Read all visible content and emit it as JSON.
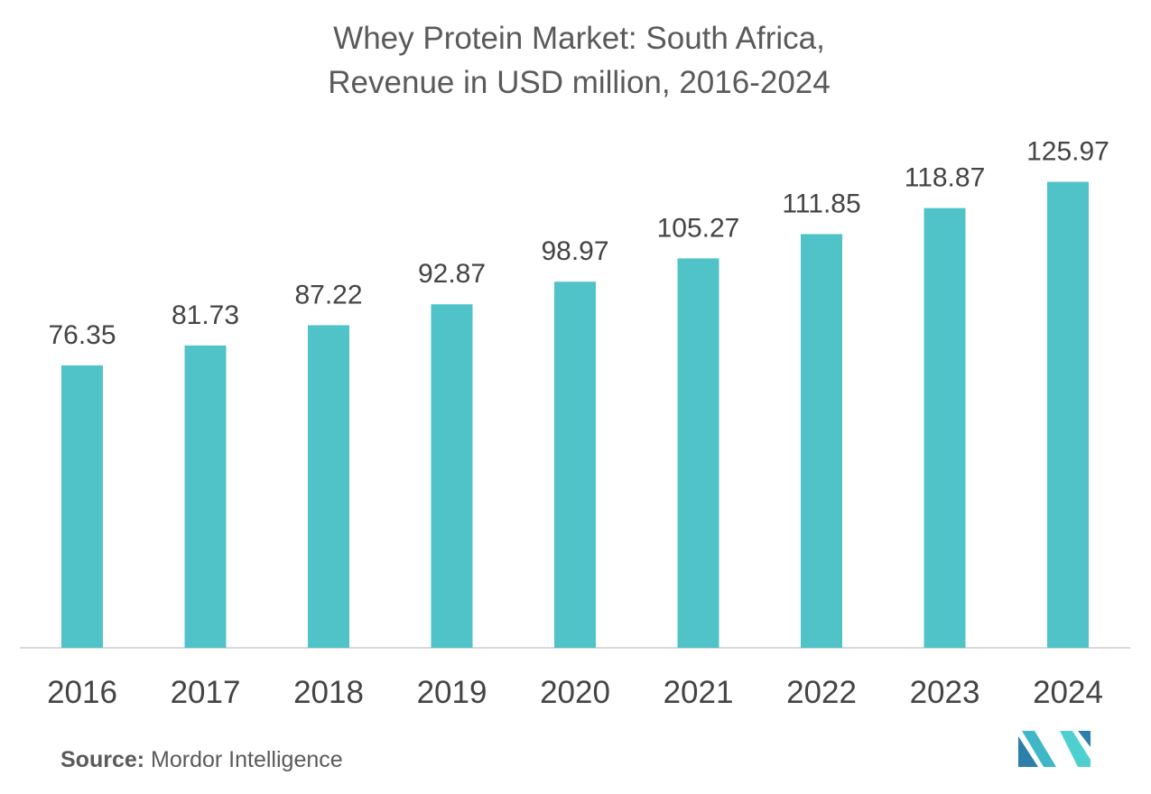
{
  "chart_data": {
    "type": "bar",
    "title": "Whey Protein Market: South Africa,",
    "subtitle": "Revenue in USD million, 2016-2024",
    "categories": [
      "2016",
      "2017",
      "2018",
      "2019",
      "2020",
      "2021",
      "2022",
      "2023",
      "2024"
    ],
    "values": [
      76.35,
      81.73,
      87.22,
      92.87,
      98.97,
      105.27,
      111.85,
      118.87,
      125.97
    ],
    "value_labels": [
      "76.35",
      "81.73",
      "87.22",
      "92.87",
      "98.97",
      "105.27",
      "111.85",
      "118.87",
      "125.97"
    ],
    "ylim": [
      0,
      126
    ],
    "bar_color": "#50c3c8",
    "axis_color": "#d9d9d9",
    "label_color": "#444444",
    "grid": false,
    "legend": "none"
  },
  "source": {
    "label": "Source:",
    "text": "Mordor Intelligence"
  },
  "logo": {
    "icon": "mordor-intelligence-logo",
    "colors": [
      "#2c7fa8",
      "#3fb7c7",
      "#4fd0d0"
    ]
  }
}
